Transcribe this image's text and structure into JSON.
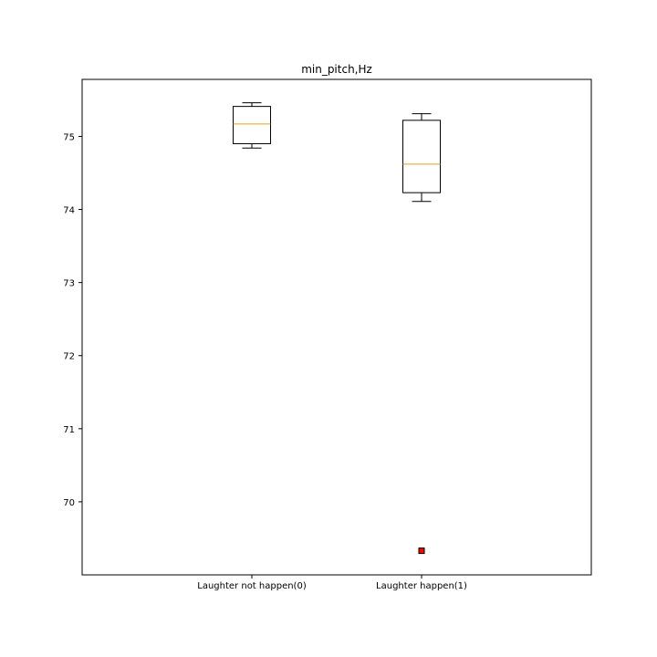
{
  "chart_data": {
    "type": "box",
    "title": "min_pitch,Hz",
    "xlabel": "",
    "ylabel": "",
    "categories": [
      "Laughter not happen(0)",
      "Laughter happen(1)"
    ],
    "boxes": [
      {
        "category": "Laughter not happen(0)",
        "whisker_low": 74.84,
        "q1": 74.9,
        "median": 75.17,
        "q3": 75.41,
        "whisker_high": 75.46,
        "outliers": []
      },
      {
        "category": "Laughter happen(1)",
        "whisker_low": 74.11,
        "q1": 74.23,
        "median": 74.62,
        "q3": 75.22,
        "whisker_high": 75.31,
        "outliers": [
          69.33
        ]
      }
    ],
    "ylim": [
      69.0,
      75.78
    ],
    "yticks": [
      70,
      71,
      72,
      73,
      74,
      75
    ],
    "grid": false,
    "colors": {
      "box": "#000000",
      "median": "#e0a020",
      "outlier_fill": "#ff0000",
      "outlier_edge": "#000000"
    }
  }
}
